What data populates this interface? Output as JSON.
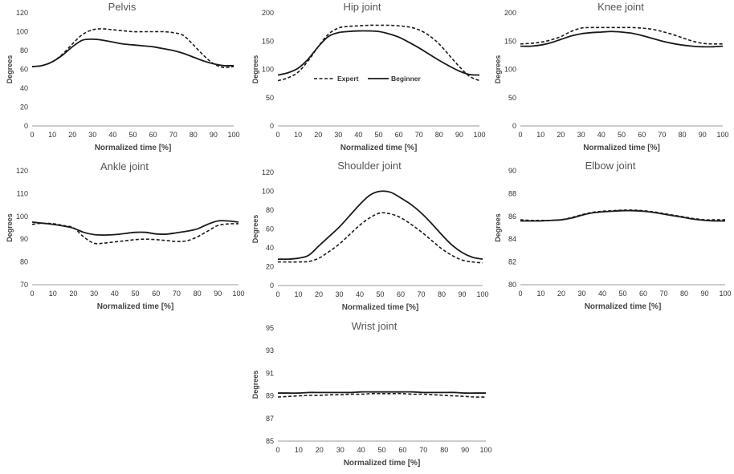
{
  "chart_data": [
    {
      "type": "line",
      "title": "Pelvis",
      "xlabel": "Normalized time [%]",
      "ylabel": "Degrees",
      "xlim": [
        0,
        100
      ],
      "ylim": [
        0,
        120
      ],
      "x_ticks": [
        0,
        10,
        20,
        30,
        40,
        50,
        60,
        70,
        80,
        90,
        100
      ],
      "y_ticks": [
        0,
        20,
        40,
        60,
        80,
        100,
        120
      ],
      "x": [
        0,
        5,
        10,
        15,
        20,
        25,
        30,
        35,
        40,
        45,
        50,
        55,
        60,
        65,
        70,
        75,
        80,
        85,
        90,
        95,
        100
      ],
      "series": [
        {
          "name": "Expert",
          "values": [
            63,
            64,
            68,
            76,
            87,
            97,
            102,
            103,
            102,
            101,
            100,
            100,
            100,
            100,
            99,
            96,
            86,
            75,
            66,
            62,
            63
          ]
        },
        {
          "name": "Beginner",
          "values": [
            63,
            64,
            68,
            75,
            84,
            91,
            92,
            91,
            89,
            87,
            86,
            85,
            84,
            82,
            80,
            77,
            73,
            69,
            66,
            64,
            64
          ]
        }
      ]
    },
    {
      "type": "line",
      "title": "Hip joint",
      "xlabel": "Normalized time [%]",
      "ylabel": "Degrees",
      "xlim": [
        0,
        100
      ],
      "ylim": [
        0,
        200
      ],
      "x_ticks": [
        0,
        10,
        20,
        30,
        40,
        50,
        60,
        70,
        80,
        90,
        100
      ],
      "y_ticks": [
        0,
        50,
        100,
        150,
        200
      ],
      "x": [
        0,
        5,
        10,
        15,
        20,
        25,
        30,
        35,
        40,
        45,
        50,
        55,
        60,
        65,
        70,
        75,
        80,
        85,
        90,
        95,
        100
      ],
      "series": [
        {
          "name": "Expert",
          "values": [
            80,
            85,
            95,
            115,
            140,
            162,
            173,
            176,
            177,
            178,
            178,
            178,
            177,
            175,
            170,
            160,
            145,
            125,
            105,
            88,
            80
          ]
        },
        {
          "name": "Beginner",
          "values": [
            90,
            94,
            102,
            118,
            140,
            158,
            165,
            167,
            168,
            168,
            167,
            163,
            157,
            148,
            138,
            127,
            116,
            106,
            97,
            91,
            90
          ]
        }
      ],
      "legend": {
        "position": "bottom-center",
        "entries": [
          {
            "name": "Expert",
            "style": "dashed"
          },
          {
            "name": "Beginner",
            "style": "solid"
          }
        ]
      }
    },
    {
      "type": "line",
      "title": "Knee joint",
      "xlabel": "Normalized time [%]",
      "ylabel": "Degrees",
      "xlim": [
        0,
        100
      ],
      "ylim": [
        0,
        200
      ],
      "x_ticks": [
        0,
        10,
        20,
        30,
        40,
        50,
        60,
        70,
        80,
        90,
        100
      ],
      "y_ticks": [
        0,
        50,
        100,
        150,
        200
      ],
      "x": [
        0,
        5,
        10,
        15,
        20,
        25,
        30,
        35,
        40,
        45,
        50,
        55,
        60,
        65,
        70,
        75,
        80,
        85,
        90,
        95,
        100
      ],
      "series": [
        {
          "name": "Expert",
          "values": [
            145,
            146,
            148,
            152,
            158,
            167,
            173,
            174,
            174,
            174,
            174,
            174,
            173,
            171,
            167,
            162,
            156,
            150,
            146,
            145,
            145
          ]
        },
        {
          "name": "Beginner",
          "values": [
            141,
            141,
            143,
            147,
            153,
            159,
            163,
            165,
            166,
            167,
            166,
            164,
            160,
            155,
            150,
            146,
            143,
            141,
            140,
            140,
            141
          ]
        }
      ]
    },
    {
      "type": "line",
      "title": "Ankle joint",
      "xlabel": "Normalized time [%]",
      "ylabel": "Degrees",
      "xlim": [
        0,
        100
      ],
      "ylim": [
        70,
        120
      ],
      "x_ticks": [
        0,
        10,
        20,
        30,
        40,
        50,
        60,
        70,
        80,
        90,
        100
      ],
      "y_ticks": [
        70,
        80,
        90,
        100,
        110,
        120
      ],
      "x": [
        0,
        5,
        10,
        15,
        20,
        25,
        30,
        35,
        40,
        45,
        50,
        55,
        60,
        65,
        70,
        75,
        80,
        85,
        90,
        95,
        100
      ],
      "series": [
        {
          "name": "Expert",
          "values": [
            96.5,
            97,
            96.8,
            96,
            95,
            91,
            88.2,
            88.3,
            88.8,
            89.3,
            89.8,
            90,
            89.8,
            89.4,
            89,
            89.3,
            91,
            93.5,
            96,
            96.7,
            96.8
          ]
        },
        {
          "name": "Beginner",
          "values": [
            97.5,
            97,
            96.5,
            95.8,
            94.8,
            93,
            92,
            91.8,
            92,
            92.5,
            93,
            93,
            92.3,
            92.2,
            92.8,
            93.5,
            94.5,
            96.5,
            98,
            98,
            97.5
          ]
        }
      ]
    },
    {
      "type": "line",
      "title": "Shoulder joint",
      "xlabel": "Normalized time [%]",
      "ylabel": "Degrees",
      "xlim": [
        0,
        100
      ],
      "ylim": [
        0,
        120
      ],
      "x_ticks": [
        0,
        10,
        20,
        30,
        40,
        50,
        60,
        70,
        80,
        90,
        100
      ],
      "y_ticks": [
        0,
        20,
        40,
        60,
        80,
        100,
        120
      ],
      "x": [
        0,
        5,
        10,
        15,
        20,
        25,
        30,
        35,
        40,
        45,
        50,
        55,
        60,
        65,
        70,
        75,
        80,
        85,
        90,
        95,
        100
      ],
      "series": [
        {
          "name": "Expert",
          "values": [
            25,
            25,
            25,
            25.5,
            29,
            36,
            44,
            54,
            64,
            72,
            77,
            76,
            72,
            65,
            57,
            48,
            39,
            32,
            27,
            25,
            24
          ]
        },
        {
          "name": "Beginner",
          "values": [
            28,
            28,
            29,
            32,
            42,
            52,
            62,
            74,
            86,
            96,
            100,
            99,
            93,
            86,
            77,
            66,
            54,
            43,
            35,
            30,
            28
          ]
        }
      ]
    },
    {
      "type": "line",
      "title": "Elbow joint",
      "xlabel": "Normalized time [%]",
      "ylabel": "Degrees",
      "xlim": [
        0,
        100
      ],
      "ylim": [
        80,
        90
      ],
      "x_ticks": [
        0,
        10,
        20,
        30,
        40,
        50,
        60,
        70,
        80,
        90,
        100
      ],
      "y_ticks": [
        80,
        82,
        84,
        86,
        88,
        90
      ],
      "x": [
        0,
        5,
        10,
        15,
        20,
        25,
        30,
        35,
        40,
        45,
        50,
        55,
        60,
        65,
        70,
        75,
        80,
        85,
        90,
        95,
        100
      ],
      "series": [
        {
          "name": "Expert",
          "values": [
            85.7,
            85.65,
            85.65,
            85.65,
            85.7,
            85.9,
            86.15,
            86.35,
            86.45,
            86.5,
            86.55,
            86.55,
            86.5,
            86.4,
            86.25,
            86.1,
            85.95,
            85.8,
            85.7,
            85.7,
            85.7
          ]
        },
        {
          "name": "Beginner",
          "values": [
            85.6,
            85.6,
            85.6,
            85.65,
            85.7,
            85.85,
            86.1,
            86.3,
            86.4,
            86.45,
            86.5,
            86.5,
            86.45,
            86.35,
            86.2,
            86.05,
            85.9,
            85.75,
            85.65,
            85.6,
            85.6
          ]
        }
      ]
    },
    {
      "type": "line",
      "title": "Wrist joint",
      "xlabel": "Normalized time [%]",
      "ylabel": "Degrees",
      "xlim": [
        0,
        100
      ],
      "ylim": [
        85,
        95
      ],
      "x_ticks": [
        0,
        10,
        20,
        30,
        40,
        50,
        60,
        70,
        80,
        90,
        100
      ],
      "y_ticks": [
        85,
        87,
        89,
        91,
        93,
        95
      ],
      "x": [
        0,
        5,
        10,
        15,
        20,
        25,
        30,
        35,
        40,
        45,
        50,
        55,
        60,
        65,
        70,
        75,
        80,
        85,
        90,
        95,
        100
      ],
      "series": [
        {
          "name": "Expert",
          "values": [
            88.9,
            88.95,
            89,
            89.05,
            89.05,
            89.1,
            89.1,
            89.15,
            89.15,
            89.2,
            89.2,
            89.2,
            89.2,
            89.15,
            89.15,
            89.1,
            89.05,
            89,
            88.95,
            88.9,
            88.9
          ]
        },
        {
          "name": "Beginner",
          "values": [
            89.25,
            89.25,
            89.25,
            89.3,
            89.3,
            89.3,
            89.3,
            89.3,
            89.35,
            89.35,
            89.35,
            89.35,
            89.35,
            89.35,
            89.3,
            89.3,
            89.3,
            89.3,
            89.25,
            89.25,
            89.25
          ]
        }
      ]
    }
  ]
}
